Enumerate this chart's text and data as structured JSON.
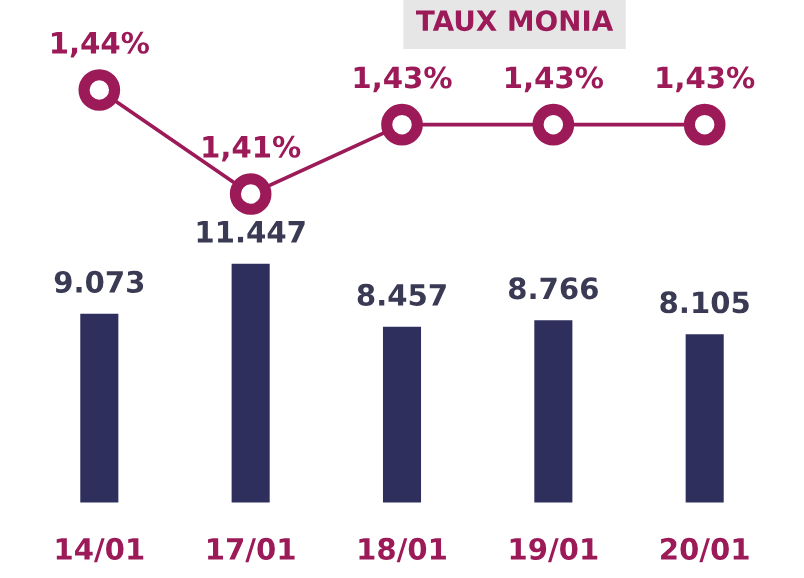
{
  "chart_data": [
    {
      "type": "line",
      "title": "TAUX MONIA",
      "categories": [
        null,
        null,
        null,
        null,
        null
      ],
      "series": [
        {
          "color": "#9c1a58",
          "values": [
            1.44,
            1.41,
            1.43,
            1.43,
            1.43
          ],
          "value_labels": [
            "1,44%",
            "1,41%",
            "1,43%",
            "1,43%",
            "1,43%"
          ]
        }
      ],
      "marker": "circle",
      "tick_labels": false,
      "grid": false,
      "legend": false
    },
    {
      "type": "bar",
      "categories": [
        "14/01",
        "17/01",
        "18/01",
        "19/01",
        "20/01"
      ],
      "series": [
        {
          "color": "#2f2f5e",
          "values": [
            9073,
            11447,
            8457,
            8766,
            8105
          ],
          "value_labels": [
            "9.073",
            "11.447",
            "8.457",
            "8.766",
            "8.105"
          ]
        }
      ],
      "tick_labels": "x",
      "grid": false,
      "legend": false
    }
  ]
}
